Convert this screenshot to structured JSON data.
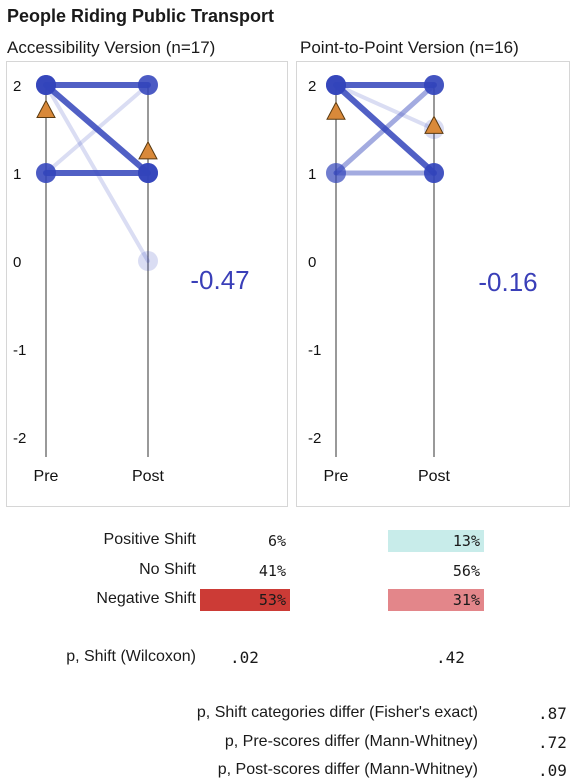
{
  "title": "People Riding Public Transport",
  "chart_data": [
    {
      "type": "line",
      "title": "Accessibility Version (n=17)",
      "x_categories": [
        "Pre",
        "Post"
      ],
      "ylim": [
        -2,
        2
      ],
      "y_ticks": [
        "2",
        "1",
        "0",
        "-1",
        "-2"
      ],
      "mean_shift": "-0.47",
      "transitions": [
        {
          "pre": 2,
          "post": 2,
          "weight": "heavy"
        },
        {
          "pre": 2,
          "post": 1,
          "weight": "heavy"
        },
        {
          "pre": 1,
          "post": 1,
          "weight": "heavy"
        },
        {
          "pre": 1,
          "post": 2,
          "weight": "faint"
        },
        {
          "pre": 2,
          "post": 0,
          "weight": "faint"
        }
      ],
      "means": {
        "pre": 1.71,
        "post": 1.24
      },
      "colors": {
        "line": "#3344bb",
        "mean_marker": "#d9893a"
      }
    },
    {
      "type": "line",
      "title": "Point-to-Point Version (n=16)",
      "x_categories": [
        "Pre",
        "Post"
      ],
      "ylim": [
        -2,
        2
      ],
      "y_ticks": [
        "2",
        "1",
        "0",
        "-1",
        "-2"
      ],
      "mean_shift": "-0.16",
      "transitions": [
        {
          "pre": 2,
          "post": 2,
          "weight": "heavy"
        },
        {
          "pre": 2,
          "post": 1,
          "weight": "heavy"
        },
        {
          "pre": 1,
          "post": 2,
          "weight": "medium"
        },
        {
          "pre": 1,
          "post": 1,
          "weight": "medium"
        },
        {
          "pre": 2,
          "post": 1.5,
          "weight": "faint"
        }
      ],
      "means": {
        "pre": 1.69,
        "post": 1.53
      },
      "colors": {
        "line": "#3344bb",
        "mean_marker": "#d9893a"
      }
    }
  ],
  "shift_table": {
    "rows": [
      {
        "label": "Positive Shift",
        "left": "6%",
        "right": "13%",
        "left_bg": "",
        "right_bg": "#c8ecea"
      },
      {
        "label": "No Shift",
        "left": "41%",
        "right": "56%",
        "left_bg": "",
        "right_bg": ""
      },
      {
        "label": "Negative Shift",
        "left": "53%",
        "right": "31%",
        "left_bg": "#cc3b36",
        "right_bg": "#e3868a"
      }
    ],
    "wilcoxon_label": "p, Shift (Wilcoxon)",
    "wilcoxon_left": ".02",
    "wilcoxon_right": ".42"
  },
  "comparisons": [
    {
      "label": "p, Shift categories differ (Fisher's exact)",
      "value": ".87"
    },
    {
      "label": "p, Pre-scores differ (Mann-Whitney)",
      "value": ".72"
    },
    {
      "label": "p, Post-scores differ (Mann-Whitney)",
      "value": ".09"
    }
  ]
}
